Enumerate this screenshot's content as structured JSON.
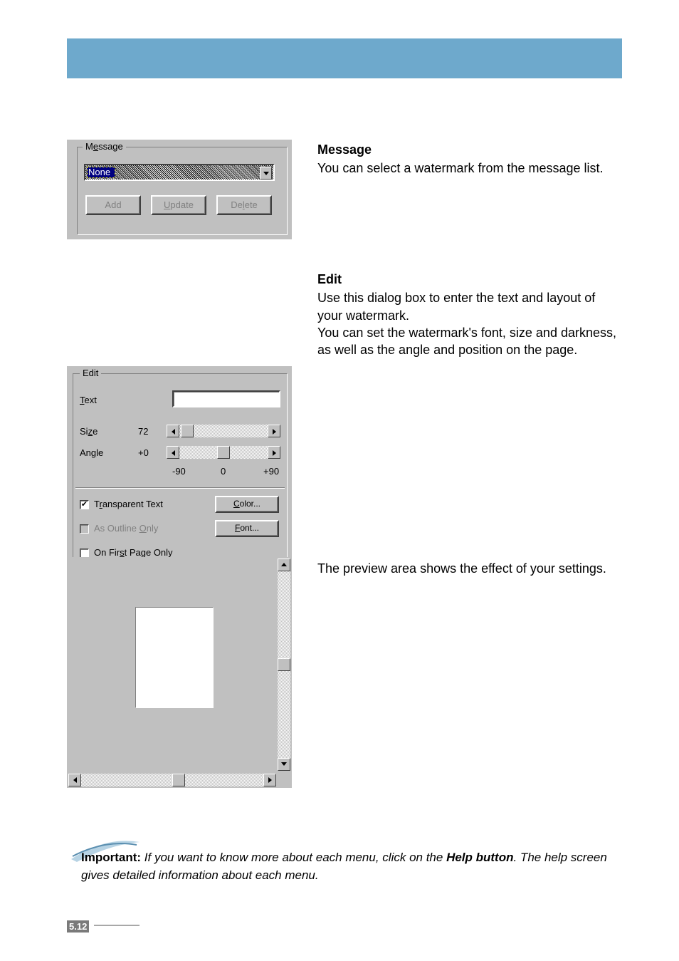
{
  "topbar_color": "#6ea9cc",
  "message_box": {
    "legend": "Message",
    "combo_value": "None",
    "buttons": {
      "add": "Add",
      "update": "Update",
      "delete": "Delete"
    }
  },
  "message_text": {
    "heading": "Message",
    "body": "You can select a watermark from the message list."
  },
  "edit_box": {
    "legend": "Edit",
    "text_label": "Text",
    "text_accel": "T",
    "size_label": "Size",
    "size_accel": "z",
    "size_value": "72",
    "angle_label": "Angle",
    "angle_accel": "g",
    "angle_value": "+0",
    "scale_labels": {
      "left": "-90",
      "mid": "0",
      "right": "+90"
    },
    "transparent_label": "Transparent Text",
    "transparent_accel": "r",
    "transparent_checked": true,
    "outline_label": "As Outline Only",
    "outline_accel": "O",
    "outline_checked": false,
    "outline_enabled": false,
    "firstpage_label": "On First Page Only",
    "firstpage_accel": "s",
    "firstpage_checked": false,
    "color_btn": "Color...",
    "color_accel": "C",
    "font_btn": "Font...",
    "font_accel": "F"
  },
  "edit_text": {
    "heading": "Edit",
    "body": "Use this dialog box to enter the text and layout of your watermark.\nYou can set the watermark's font, size and darkness, as well as the angle and position on the page."
  },
  "preview_text": "The preview area shows the effect of your settings.",
  "footnote": {
    "lead": "Important:",
    "part1": " If you want to know more about each menu, click on the ",
    "help_button": "Help button",
    "part2": ". The help screen gives detailed information about each menu."
  },
  "page_number": {
    "major": "5.",
    "minor": "12"
  },
  "layout": {
    "size_thumb_left_pct": 8,
    "angle_thumb_left_pct": 50
  }
}
